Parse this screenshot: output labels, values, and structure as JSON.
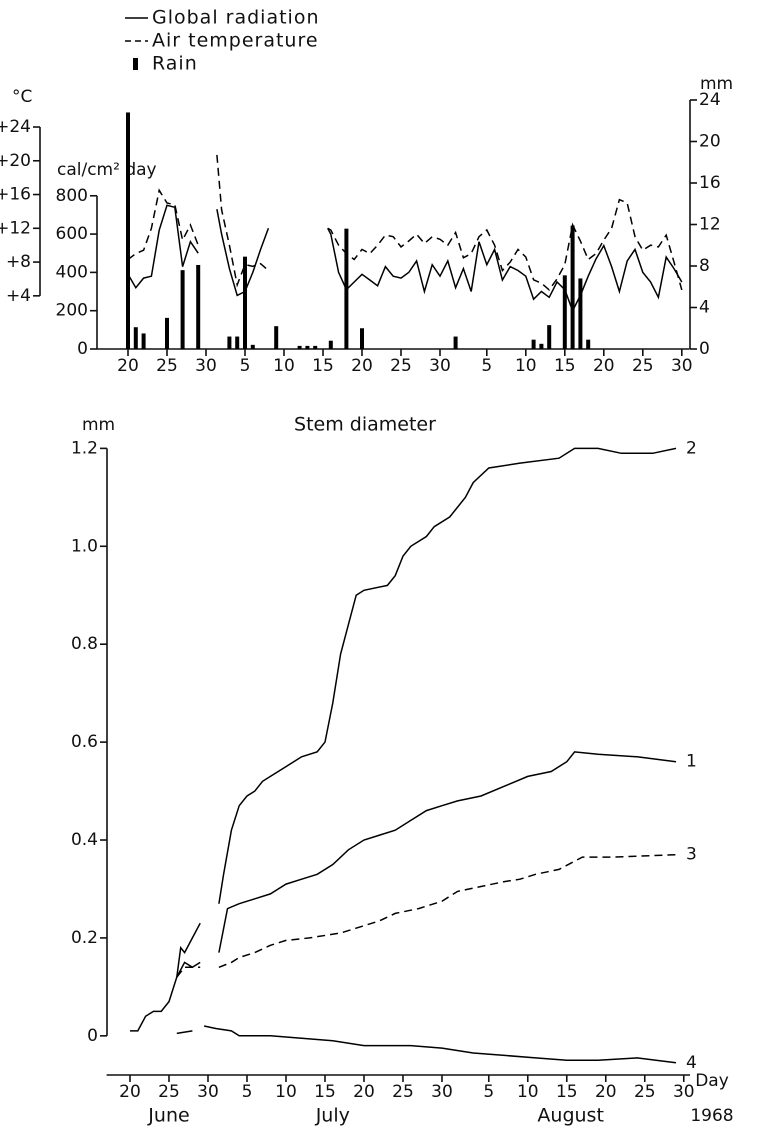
{
  "chart_data": [
    {
      "type": "line",
      "legend": "top-left",
      "ylabel": "cal/cm² day",
      "y2label": "mm",
      "y3label": "°C",
      "xlim": [
        -4,
        72
      ],
      "xticks": [
        {
          "value": 0,
          "label": "20"
        },
        {
          "value": 5,
          "label": "25"
        },
        {
          "value": 10,
          "label": "30"
        },
        {
          "value": 15,
          "label": "5"
        },
        {
          "value": 20,
          "label": "10"
        },
        {
          "value": 25,
          "label": "15"
        },
        {
          "value": 30,
          "label": "20"
        },
        {
          "value": 35,
          "label": "25"
        },
        {
          "value": 40,
          "label": "30"
        },
        {
          "value": 46,
          "label": "5"
        },
        {
          "value": 51,
          "label": "10"
        },
        {
          "value": 56,
          "label": "15"
        },
        {
          "value": 61,
          "label": "20"
        },
        {
          "value": 66,
          "label": "25"
        },
        {
          "value": 71,
          "label": "30"
        }
      ],
      "ylim": [
        0,
        1300
      ],
      "yticks": [
        0,
        200,
        400,
        600,
        800
      ],
      "y2lim": [
        0,
        24
      ],
      "y2ticks": [
        0,
        4,
        8,
        12,
        16,
        20,
        24
      ],
      "y3lim": [
        -2.3,
        27.2
      ],
      "y3ticks": [
        {
          "value": 4,
          "label": "+4"
        },
        {
          "value": 8,
          "label": "+8"
        },
        {
          "value": 12,
          "label": "+12"
        },
        {
          "value": 16,
          "label": "+16"
        },
        {
          "value": 20,
          "label": "+20"
        },
        {
          "value": 24,
          "label": "+24"
        }
      ],
      "series": [
        {
          "name": "Global radiation",
          "color": "#000000",
          "dash": false,
          "axis": "y",
          "x": [
            0,
            1,
            2,
            3,
            4,
            5,
            6,
            7,
            8,
            9,
            10,
            11.4,
            12,
            13,
            14,
            15,
            16,
            17,
            18,
            19,
            25.6,
            26,
            27,
            28,
            29,
            30,
            31,
            32,
            33,
            34,
            35,
            36,
            37,
            38,
            39,
            40,
            41,
            42,
            43,
            44,
            45,
            46,
            47,
            48,
            49,
            50,
            51,
            52,
            53,
            54,
            55,
            56,
            57,
            58,
            59,
            60,
            61,
            62,
            63,
            64,
            65,
            66,
            67,
            68,
            69,
            70,
            71
          ],
          "values": [
            390,
            320,
            370,
            380,
            620,
            750,
            740,
            430,
            560,
            500,
            null,
            730,
            600,
            420,
            280,
            300,
            400,
            520,
            630,
            null,
            630,
            600,
            400,
            310,
            350,
            390,
            360,
            330,
            430,
            380,
            370,
            400,
            460,
            300,
            440,
            380,
            460,
            320,
            420,
            300,
            560,
            440,
            520,
            360,
            430,
            410,
            380,
            260,
            300,
            270,
            350,
            310,
            200,
            280,
            380,
            470,
            540,
            430,
            300,
            460,
            520,
            400,
            350,
            270,
            480,
            420,
            350
          ]
        },
        {
          "name": "Air temperature",
          "color": "#000000",
          "dash": true,
          "axis": "y3",
          "x": [
            0,
            1,
            2,
            3,
            4,
            5,
            6,
            7,
            8,
            9,
            10,
            11.4,
            12,
            13,
            14,
            15,
            16,
            17,
            18,
            19,
            25.6,
            26,
            27,
            28,
            29,
            30,
            31,
            32,
            33,
            34,
            35,
            36,
            37,
            38,
            39,
            40,
            41,
            42,
            43,
            44,
            45,
            46,
            47,
            48,
            49,
            50,
            51,
            52,
            53,
            54,
            55,
            56,
            57,
            58,
            59,
            60,
            61,
            62,
            63,
            64,
            65,
            66,
            67,
            68,
            69,
            70,
            71
          ],
          "values": [
            8.3,
            9,
            9.4,
            12,
            16.5,
            15,
            14.8,
            10.6,
            12.4,
            10,
            null,
            20.7,
            14.2,
            10,
            5.3,
            7.7,
            7.5,
            7.8,
            7,
            null,
            12,
            11.8,
            10,
            9,
            8.3,
            9.5,
            9,
            10,
            11.2,
            11,
            9.8,
            10.5,
            11.3,
            10.2,
            11,
            10.7,
            10,
            11.5,
            8.5,
            9,
            11,
            11.8,
            10,
            7,
            8,
            9.5,
            8.6,
            5.9,
            5.5,
            4.7,
            6,
            7.7,
            12.4,
            10.5,
            8.3,
            9,
            10.6,
            12,
            15.4,
            15,
            11,
            9.4,
            10,
            9.8,
            11.2,
            8,
            4.7
          ]
        },
        {
          "name": "Rain",
          "color": "#000000",
          "type": "bar",
          "axis": "y2",
          "x": [
            0,
            1,
            2,
            5,
            7,
            9,
            13,
            14,
            15,
            16,
            19,
            22,
            23,
            24,
            26,
            28,
            30,
            42,
            52,
            53,
            54,
            56,
            57,
            58,
            59
          ],
          "values": [
            22.8,
            2.1,
            1.5,
            3,
            7.6,
            8.1,
            1.2,
            1.2,
            8.9,
            0.4,
            2.2,
            0.3,
            0.3,
            0.3,
            0.8,
            11.6,
            2,
            1.2,
            0.9,
            0.5,
            2.3,
            7.1,
            11.9,
            6.8,
            0.9
          ]
        }
      ]
    },
    {
      "type": "line",
      "title": "Stem diameter",
      "ylabel": "mm",
      "xlabel": "Day",
      "year": "1968",
      "end_labels": true,
      "xgroups": [
        {
          "label": "June",
          "start": 0,
          "end": 10
        },
        {
          "label": "July",
          "start": 11,
          "end": 41
        },
        {
          "label": "August",
          "start": 42,
          "end": 71
        }
      ],
      "xlim": [
        -3,
        71.8
      ],
      "xticks": [
        {
          "value": 0,
          "label": "20"
        },
        {
          "value": 5,
          "label": "25"
        },
        {
          "value": 10,
          "label": "30"
        },
        {
          "value": 15,
          "label": "5"
        },
        {
          "value": 20,
          "label": "10"
        },
        {
          "value": 25,
          "label": "15"
        },
        {
          "value": 30,
          "label": "20"
        },
        {
          "value": 35,
          "label": "25"
        },
        {
          "value": 40,
          "label": "30"
        },
        {
          "value": 46,
          "label": "5"
        },
        {
          "value": 51,
          "label": "10"
        },
        {
          "value": 56,
          "label": "15"
        },
        {
          "value": 61,
          "label": "20"
        },
        {
          "value": 66,
          "label": "25"
        },
        {
          "value": 71,
          "label": "30"
        }
      ],
      "ylim": [
        -0.08,
        1.26
      ],
      "yticks": [
        0,
        0.2,
        0.4,
        0.6,
        0.8,
        {
          "value": 1,
          "label": "1.0"
        },
        1.2
      ],
      "series": [
        {
          "name": "2",
          "color": "#000000",
          "dash": false,
          "x": [
            0,
            1,
            2,
            3,
            4,
            5,
            6,
            6.5,
            7,
            8,
            9,
            10,
            11.4,
            12,
            13,
            14,
            15,
            16,
            17,
            18,
            20,
            22,
            24,
            25,
            26,
            27,
            28,
            29,
            30,
            33,
            34,
            35,
            36,
            38,
            39,
            41,
            43,
            44,
            46,
            50,
            55,
            57,
            60,
            63,
            67,
            70
          ],
          "values": [
            0.01,
            0.01,
            0.04,
            0.05,
            0.05,
            0.07,
            0.12,
            0.18,
            0.17,
            0.2,
            0.23,
            null,
            0.27,
            0.33,
            0.42,
            0.47,
            0.49,
            0.5,
            0.52,
            0.53,
            0.55,
            0.57,
            0.58,
            0.6,
            0.68,
            0.78,
            0.84,
            0.9,
            0.91,
            0.92,
            0.94,
            0.98,
            1.0,
            1.02,
            1.04,
            1.06,
            1.1,
            1.13,
            1.16,
            1.17,
            1.18,
            1.2,
            1.2,
            1.19,
            1.19,
            1.2
          ]
        },
        {
          "name": "1",
          "color": "#000000",
          "dash": false,
          "x": [
            6,
            7,
            8,
            9,
            10,
            11.4,
            12.5,
            14,
            16,
            18,
            20,
            22,
            24,
            26,
            28,
            30,
            32,
            34,
            36,
            38,
            40,
            42,
            45,
            48,
            51,
            54,
            56,
            57,
            60,
            65,
            70
          ],
          "values": [
            0.12,
            0.15,
            0.14,
            0.15,
            null,
            0.17,
            0.26,
            0.27,
            0.28,
            0.29,
            0.31,
            0.32,
            0.33,
            0.35,
            0.38,
            0.4,
            0.41,
            0.42,
            0.44,
            0.46,
            0.47,
            0.48,
            0.49,
            0.51,
            0.53,
            0.54,
            0.56,
            0.58,
            0.575,
            0.57,
            0.56
          ]
        },
        {
          "name": "3",
          "color": "#000000",
          "dash": true,
          "x": [
            6,
            7,
            9,
            10,
            11.4,
            13,
            14,
            16,
            18,
            20,
            23,
            27,
            30,
            32,
            34,
            37,
            40,
            42,
            45,
            48,
            50,
            52,
            55,
            58,
            62,
            70
          ],
          "values": [
            0.12,
            0.14,
            0.14,
            null,
            0.14,
            0.15,
            0.16,
            0.17,
            0.185,
            0.195,
            0.2,
            0.21,
            0.225,
            0.235,
            0.25,
            0.26,
            0.275,
            0.295,
            0.305,
            0.315,
            0.32,
            0.33,
            0.34,
            0.365,
            0.365,
            0.37
          ]
        },
        {
          "name": "4",
          "color": "#000000",
          "dash": false,
          "x": [
            6,
            8,
            9,
            9.5,
            11,
            13,
            14,
            16,
            18,
            22,
            26,
            30,
            36,
            40,
            44,
            48,
            52,
            56,
            60,
            65,
            70
          ],
          "values": [
            0.005,
            0.01,
            null,
            0.02,
            0.015,
            0.01,
            0,
            0,
            0,
            -0.005,
            -0.01,
            -0.02,
            -0.02,
            -0.025,
            -0.035,
            -0.04,
            -0.045,
            -0.05,
            -0.05,
            -0.045,
            -0.055
          ]
        }
      ]
    }
  ]
}
